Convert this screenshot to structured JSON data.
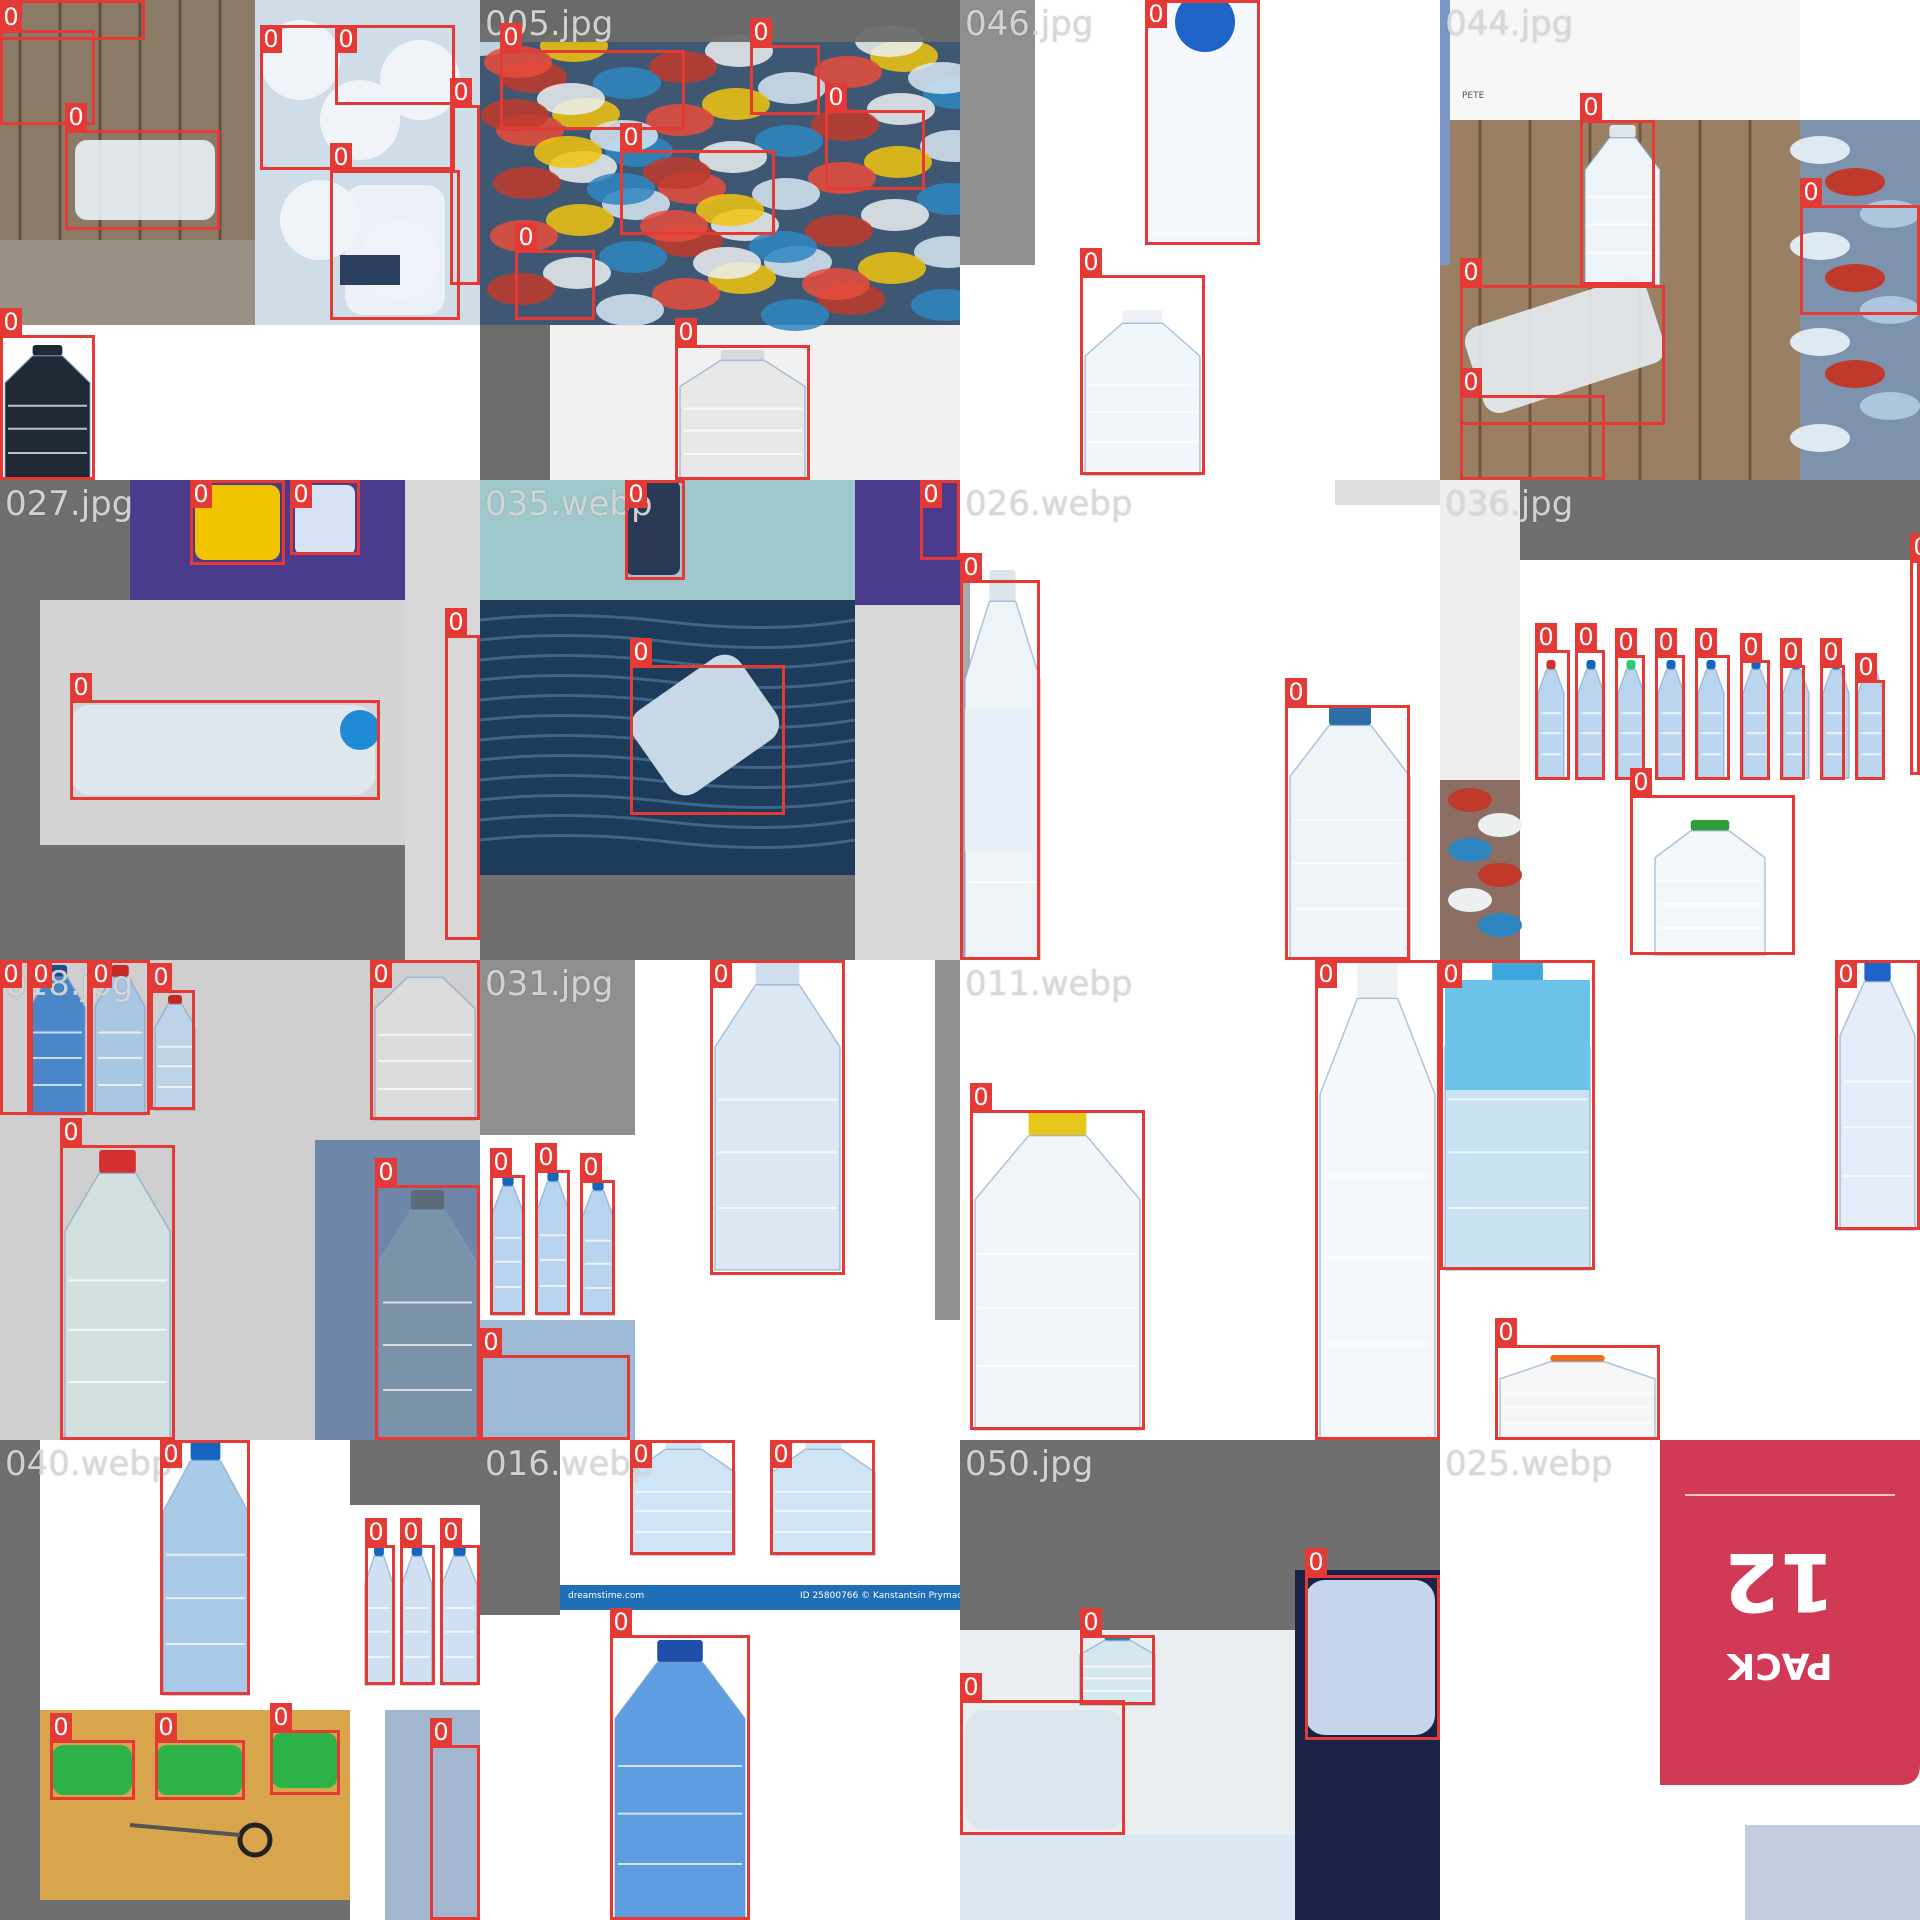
{
  "class_label": "0",
  "colors": {
    "box": "#e53935",
    "label_text": "#ffffff",
    "filename_text": "#d7d7d7"
  },
  "tiles": [
    {
      "filename": "",
      "boxes": [
        [
          0,
          0,
          145,
          40
        ],
        [
          0,
          30,
          95,
          125
        ],
        [
          65,
          130,
          220,
          230
        ],
        [
          260,
          25,
          455,
          170
        ],
        [
          335,
          25,
          455,
          105
        ],
        [
          330,
          170,
          460,
          320
        ],
        [
          450,
          105,
          480,
          285
        ],
        [
          0,
          335,
          95,
          480
        ]
      ]
    },
    {
      "filename": "005.jpg",
      "boxes": [
        [
          20,
          50,
          205,
          130
        ],
        [
          270,
          45,
          340,
          115
        ],
        [
          345,
          110,
          445,
          190
        ],
        [
          140,
          150,
          295,
          235
        ],
        [
          35,
          250,
          115,
          320
        ],
        [
          195,
          345,
          330,
          480
        ]
      ]
    },
    {
      "filename": "046.jpg",
      "boxes": [
        [
          185,
          0,
          300,
          245
        ],
        [
          120,
          275,
          245,
          475
        ]
      ]
    },
    {
      "filename": "044.jpg",
      "boxes": [
        [
          140,
          120,
          215,
          285
        ],
        [
          360,
          205,
          480,
          315
        ],
        [
          20,
          285,
          225,
          425
        ],
        [
          20,
          395,
          165,
          480
        ]
      ]
    },
    {
      "filename": "027.jpg",
      "boxes": [
        [
          190,
          0,
          285,
          85
        ],
        [
          290,
          0,
          360,
          75
        ],
        [
          70,
          220,
          380,
          320
        ],
        [
          445,
          155,
          480,
          460
        ]
      ]
    },
    {
      "filename": "035.webp",
      "boxes": [
        [
          145,
          0,
          205,
          100
        ],
        [
          150,
          185,
          305,
          335
        ],
        [
          440,
          0,
          480,
          80
        ]
      ]
    },
    {
      "filename": "026.webp",
      "boxes": [
        [
          0,
          100,
          80,
          480
        ],
        [
          325,
          225,
          450,
          480
        ]
      ]
    },
    {
      "filename": "036.jpg",
      "boxes": [
        [
          95,
          170,
          130,
          300
        ],
        [
          135,
          170,
          165,
          300
        ],
        [
          175,
          175,
          205,
          300
        ],
        [
          215,
          175,
          245,
          300
        ],
        [
          255,
          175,
          290,
          300
        ],
        [
          300,
          180,
          330,
          300
        ],
        [
          340,
          185,
          365,
          300
        ],
        [
          380,
          185,
          405,
          300
        ],
        [
          415,
          200,
          445,
          300
        ],
        [
          470,
          80,
          480,
          295
        ],
        [
          190,
          315,
          355,
          475
        ]
      ]
    },
    {
      "filename": "018.jpg",
      "boxes": [
        [
          0,
          0,
          30,
          155
        ],
        [
          30,
          0,
          90,
          155
        ],
        [
          90,
          0,
          150,
          155
        ],
        [
          150,
          30,
          195,
          150
        ],
        [
          370,
          0,
          480,
          160
        ],
        [
          60,
          185,
          175,
          480
        ],
        [
          375,
          225,
          480,
          480
        ]
      ]
    },
    {
      "filename": "031.jpg",
      "boxes": [
        [
          230,
          0,
          365,
          315
        ],
        [
          10,
          215,
          45,
          355
        ],
        [
          55,
          210,
          90,
          355
        ],
        [
          100,
          220,
          135,
          355
        ],
        [
          0,
          395,
          150,
          480
        ]
      ]
    },
    {
      "filename": "011.webp",
      "boxes": [
        [
          10,
          150,
          185,
          470
        ],
        [
          355,
          0,
          480,
          480
        ]
      ]
    },
    {
      "filename": "",
      "boxes": [
        [
          0,
          0,
          155,
          310
        ],
        [
          395,
          0,
          480,
          270
        ],
        [
          55,
          385,
          220,
          480
        ]
      ]
    },
    {
      "filename": "040.webp",
      "boxes": [
        [
          160,
          0,
          250,
          255
        ],
        [
          365,
          105,
          395,
          245
        ],
        [
          400,
          105,
          435,
          245
        ],
        [
          440,
          105,
          480,
          245
        ],
        [
          50,
          300,
          135,
          360
        ],
        [
          155,
          300,
          245,
          360
        ],
        [
          270,
          290,
          340,
          355
        ],
        [
          430,
          305,
          480,
          480
        ]
      ]
    },
    {
      "filename": "016.webp",
      "boxes": [
        [
          150,
          0,
          255,
          115
        ],
        [
          290,
          0,
          395,
          115
        ],
        [
          130,
          195,
          270,
          480
        ]
      ]
    },
    {
      "filename": "050.jpg",
      "boxes": [
        [
          120,
          195,
          195,
          265
        ],
        [
          0,
          260,
          165,
          395
        ],
        [
          345,
          135,
          480,
          300
        ]
      ]
    },
    {
      "filename": "025.webp",
      "boxes": []
    }
  ],
  "watermark_left": "dreamstime.com",
  "watermark_right": "ID 25800766 © Kanstantsin Prymachuk",
  "pack_text_top": "12",
  "pack_text_bottom": "PACK",
  "pete_text": "PETE"
}
